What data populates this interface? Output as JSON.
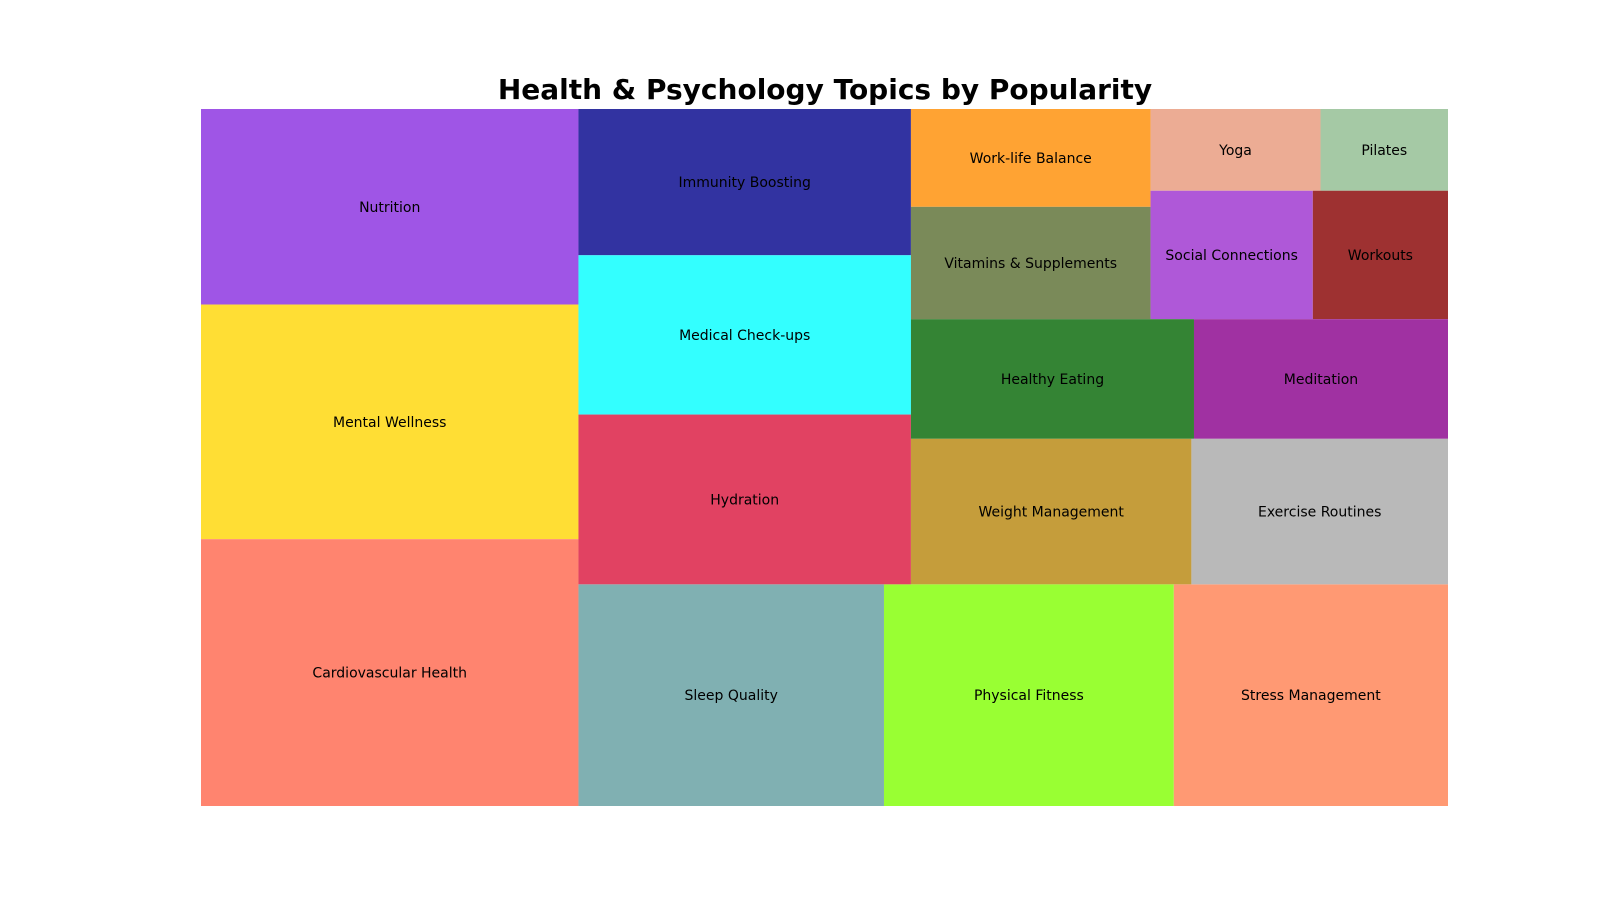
{
  "chart_data": {
    "type": "treemap",
    "title": "Health & Psychology Topics by Popularity",
    "xlabel": "",
    "ylabel": "",
    "grid": false,
    "axes_visible": false,
    "columns": [
      {
        "layout": "stack",
        "items": [
          {
            "name": "Nutrition",
            "value": 85,
            "color": "#9f55e6"
          },
          {
            "name": "Mental Wellness",
            "value": 102,
            "color": "#ffde34"
          },
          {
            "name": "Cardiovascular Health",
            "value": 116,
            "color": "#ff846f"
          }
        ]
      },
      {
        "layout": "stack",
        "items": [
          {
            "name": "Immunity Boosting",
            "value": 56,
            "color": "#3233a1"
          },
          {
            "name": "Medical Check-ups",
            "value": 61,
            "color": "#33ffff"
          },
          {
            "name": "Hydration",
            "value": 65,
            "color": "#e14262"
          }
        ]
      },
      {
        "layout": "row",
        "items": [
          {
            "name": "Sleep Quality",
            "value": 78,
            "color": "#80b0b2"
          },
          {
            "name": "Physical Fitness",
            "value": 74,
            "color": "#99ff33"
          },
          {
            "name": "Stress Management",
            "value": 70,
            "color": "#ff9973"
          }
        ]
      },
      {
        "layout": "block",
        "items": [
          {
            "name": "Work-life Balance",
            "value": 27,
            "color": "#ffa333"
          },
          {
            "name": "Vitamins & Supplements",
            "value": 31,
            "color": "#7a8a59"
          },
          {
            "name": "Yoga",
            "value": 16,
            "color": "#ecac94"
          },
          {
            "name": "Pilates",
            "value": 12,
            "color": "#a5c9a5"
          },
          {
            "name": "Social Connections",
            "value": 24,
            "color": "#af58d8"
          },
          {
            "name": "Workouts",
            "value": 20,
            "color": "#9e3131"
          },
          {
            "name": "Healthy Eating",
            "value": 39,
            "color": "#348434"
          },
          {
            "name": "Meditation",
            "value": 35,
            "color": "#a031a2"
          },
          {
            "name": "Weight Management",
            "value": 47,
            "color": "#c59d3b"
          },
          {
            "name": "Exercise Routines",
            "value": 43,
            "color": "#b9b9b9"
          }
        ]
      }
    ]
  }
}
